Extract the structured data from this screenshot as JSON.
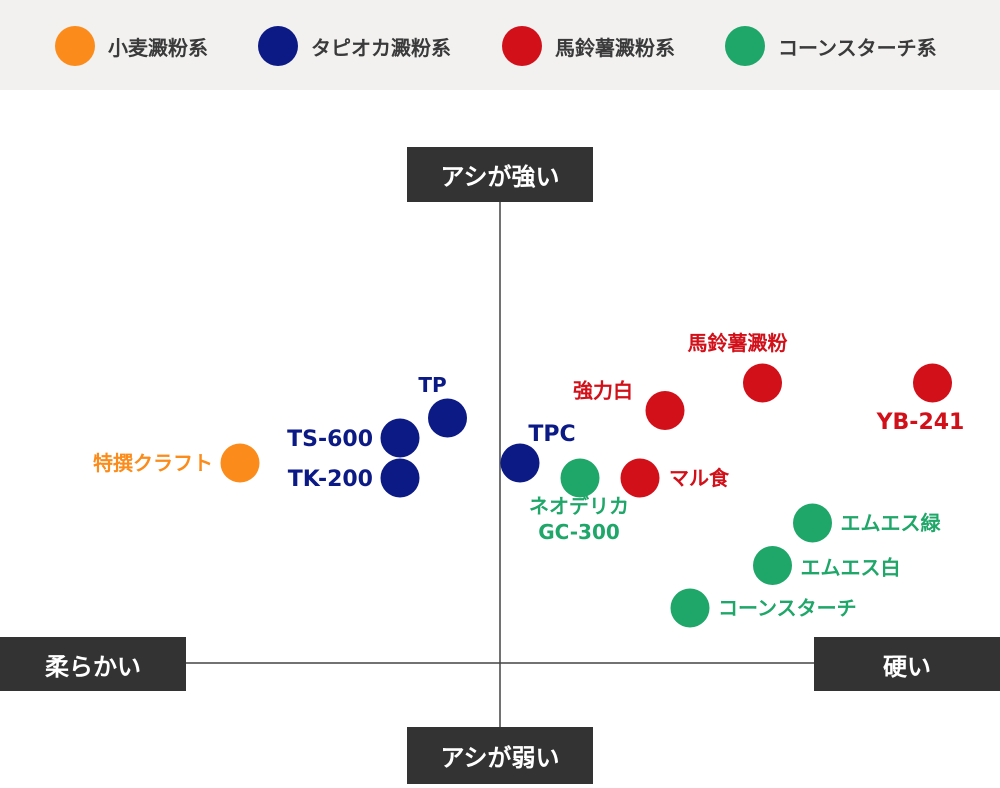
{
  "legend": [
    {
      "label": "小麦澱粉系",
      "color": "#fb8c1b"
    },
    {
      "label": "タピオカ澱粉系",
      "color": "#0b1a85"
    },
    {
      "label": "馬鈴薯澱粉系",
      "color": "#d2101a"
    },
    {
      "label": "コーンスターチ系",
      "color": "#1fa669"
    }
  ],
  "axes": {
    "top": "アシが強い",
    "bottom": "アシが弱い",
    "left": "柔らかい",
    "right": "硬い"
  },
  "chart_data": {
    "type": "scatter",
    "title": "",
    "xlabel": "柔らかい ← → 硬い",
    "ylabel": "アシが弱い ↓ ↑ アシが強い",
    "xlim": [
      -10,
      10
    ],
    "ylim": [
      -10,
      10
    ],
    "grid": false,
    "legend_position": "top",
    "series": [
      {
        "name": "小麦澱粉系",
        "color": "#fb8c1b",
        "points": [
          {
            "label": "特撰クラフト",
            "x": -5.2,
            "y": 4.0
          }
        ]
      },
      {
        "name": "タピオカ澱粉系",
        "color": "#0b1a85",
        "points": [
          {
            "label": "TP",
            "x": -1.05,
            "y": 4.9
          },
          {
            "label": "TS-600",
            "x": -2.0,
            "y": 4.5
          },
          {
            "label": "TK-200",
            "x": -2.0,
            "y": 3.7
          },
          {
            "label": "TPC",
            "x": 0.4,
            "y": 4.0
          }
        ]
      },
      {
        "name": "馬鈴薯澱粉系",
        "color": "#d2101a",
        "points": [
          {
            "label": "馬鈴薯澱粉",
            "x": 5.25,
            "y": 5.6
          },
          {
            "label": "YB-241",
            "x": 8.65,
            "y": 5.6
          },
          {
            "label": "強力白",
            "x": 3.3,
            "y": 5.05
          },
          {
            "label": "マル食",
            "x": 2.8,
            "y": 3.7
          }
        ]
      },
      {
        "name": "コーンスターチ系",
        "color": "#1fa669",
        "points": [
          {
            "label": "ネオデリカ\nGC-300",
            "x": 1.6,
            "y": 3.7
          },
          {
            "label": "エムエス緑",
            "x": 6.25,
            "y": 2.8
          },
          {
            "label": "エムエス白",
            "x": 5.45,
            "y": 1.95
          },
          {
            "label": "コーンスターチ",
            "x": 3.8,
            "y": 1.1
          }
        ]
      }
    ]
  }
}
